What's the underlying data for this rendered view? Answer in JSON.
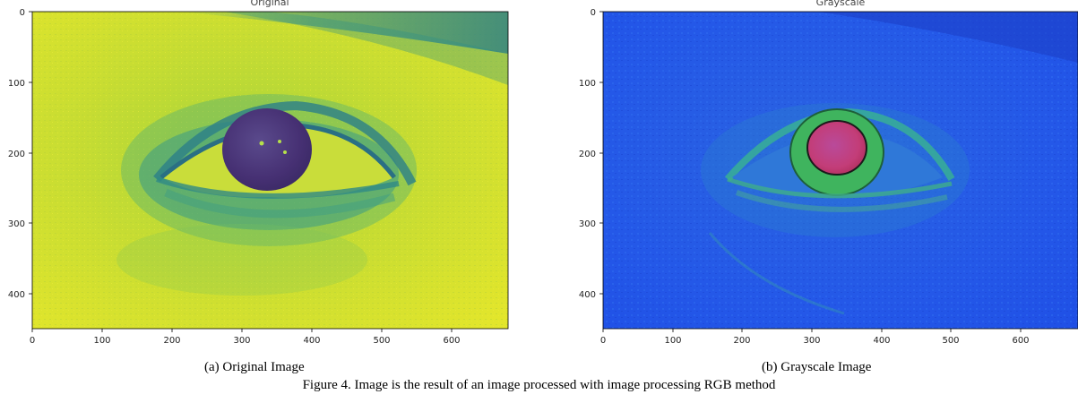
{
  "panels": [
    {
      "id": "a",
      "title": "Original",
      "colormap": "viridis",
      "image": "close-up of a human eye rendered in a yellow-green false-color map",
      "xticks": [
        "0",
        "100",
        "200",
        "300",
        "400",
        "500",
        "600"
      ],
      "yticks": [
        "0",
        "100",
        "200",
        "300",
        "400"
      ],
      "caption": "(a) Original Image"
    },
    {
      "id": "b",
      "title": "Grayscale",
      "colormap": "blue-green-red false color",
      "image": "same eye rendered in blue false color with a red/magenta iris and green ring",
      "xticks": [
        "0",
        "100",
        "200",
        "300",
        "400",
        "500",
        "600"
      ],
      "yticks": [
        "0",
        "100",
        "200",
        "300",
        "400"
      ],
      "caption": "(b) Grayscale Image"
    }
  ],
  "figure_caption": "Figure 4. Image is the result of an image processed with image processing RGB method",
  "colors": {
    "panel_a_base": "#d8e22e",
    "panel_a_dark": "#2f8e8a",
    "panel_a_iris": "#46307a",
    "panel_b_base": "#2457e8",
    "panel_b_green": "#3fc46a",
    "panel_b_iris": "#c43a7a"
  }
}
